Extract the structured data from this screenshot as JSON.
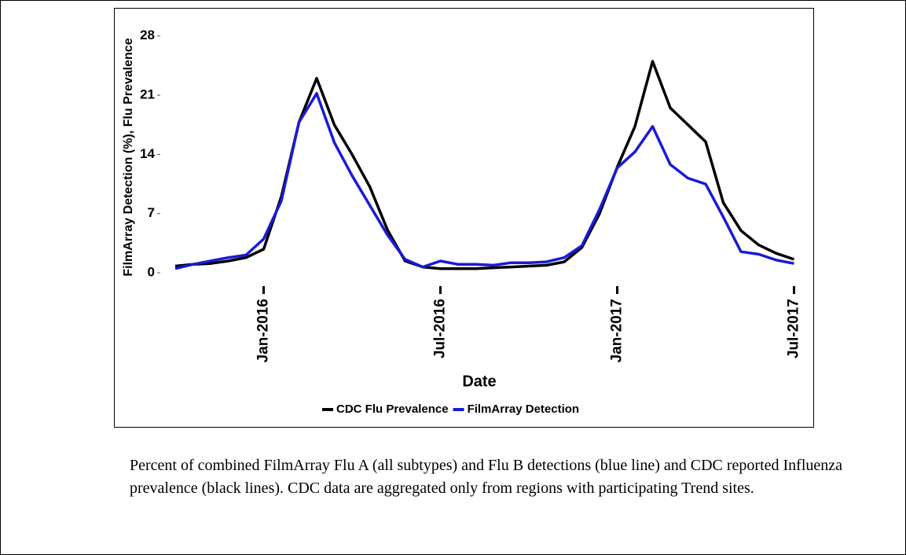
{
  "chart_data": {
    "type": "line",
    "x_label": "Date",
    "y_label": "FilmArray Detection (%), Flu Prevalence",
    "x": [
      2015.75,
      2015.8,
      2015.85,
      2015.9,
      2015.95,
      2016.0,
      2016.05,
      2016.1,
      2016.15,
      2016.2,
      2016.25,
      2016.3,
      2016.35,
      2016.4,
      2016.45,
      2016.5,
      2016.55,
      2016.6,
      2016.65,
      2016.7,
      2016.75,
      2016.8,
      2016.85,
      2016.9,
      2016.95,
      2017.0,
      2017.05,
      2017.1,
      2017.15,
      2017.2,
      2017.25,
      2017.3,
      2017.35,
      2017.4,
      2017.45,
      2017.5
    ],
    "series": [
      {
        "name": "CDC Flu Prevalence",
        "color": "#000000",
        "values": [
          0.8,
          1.0,
          1.1,
          1.4,
          1.8,
          2.8,
          9.0,
          17.8,
          23.0,
          17.5,
          14.0,
          10.2,
          5.1,
          1.4,
          0.7,
          0.5,
          0.5,
          0.5,
          0.6,
          0.7,
          0.8,
          0.9,
          1.3,
          3.0,
          7.0,
          12.5,
          17.3,
          25.0,
          19.5,
          17.5,
          15.5,
          8.3,
          5.0,
          3.3,
          2.3,
          1.6
        ]
      },
      {
        "name": "FilmArray Detection",
        "color": "#1a1ad6",
        "values": [
          0.5,
          1.0,
          1.4,
          1.8,
          2.1,
          4.0,
          8.5,
          17.8,
          21.2,
          15.4,
          11.5,
          8.0,
          4.5,
          1.6,
          0.7,
          1.4,
          1.0,
          1.0,
          0.9,
          1.2,
          1.2,
          1.3,
          1.8,
          3.2,
          7.5,
          12.4,
          14.3,
          17.3,
          12.8,
          11.2,
          10.5,
          6.6,
          2.5,
          2.2,
          1.5,
          1.1
        ]
      }
    ],
    "xlim": [
      2015.71,
      2017.51
    ],
    "xticks": [
      {
        "value": 2016.0,
        "label": "Jan-2016"
      },
      {
        "value": 2016.5,
        "label": "Jul-2016"
      },
      {
        "value": 2017.0,
        "label": "Jan-2017"
      },
      {
        "value": 2017.5,
        "label": "Jul-2017"
      }
    ],
    "ylim": [
      -1.2,
      29
    ],
    "yticks": [
      0,
      7,
      14,
      21,
      28
    ],
    "legend": "bottom"
  },
  "caption": "Percent of combined FilmArray Flu A (all subtypes) and Flu B detections (blue line) and CDC reported Influenza prevalence (black lines). CDC data are aggregated only from regions with participating Trend sites."
}
